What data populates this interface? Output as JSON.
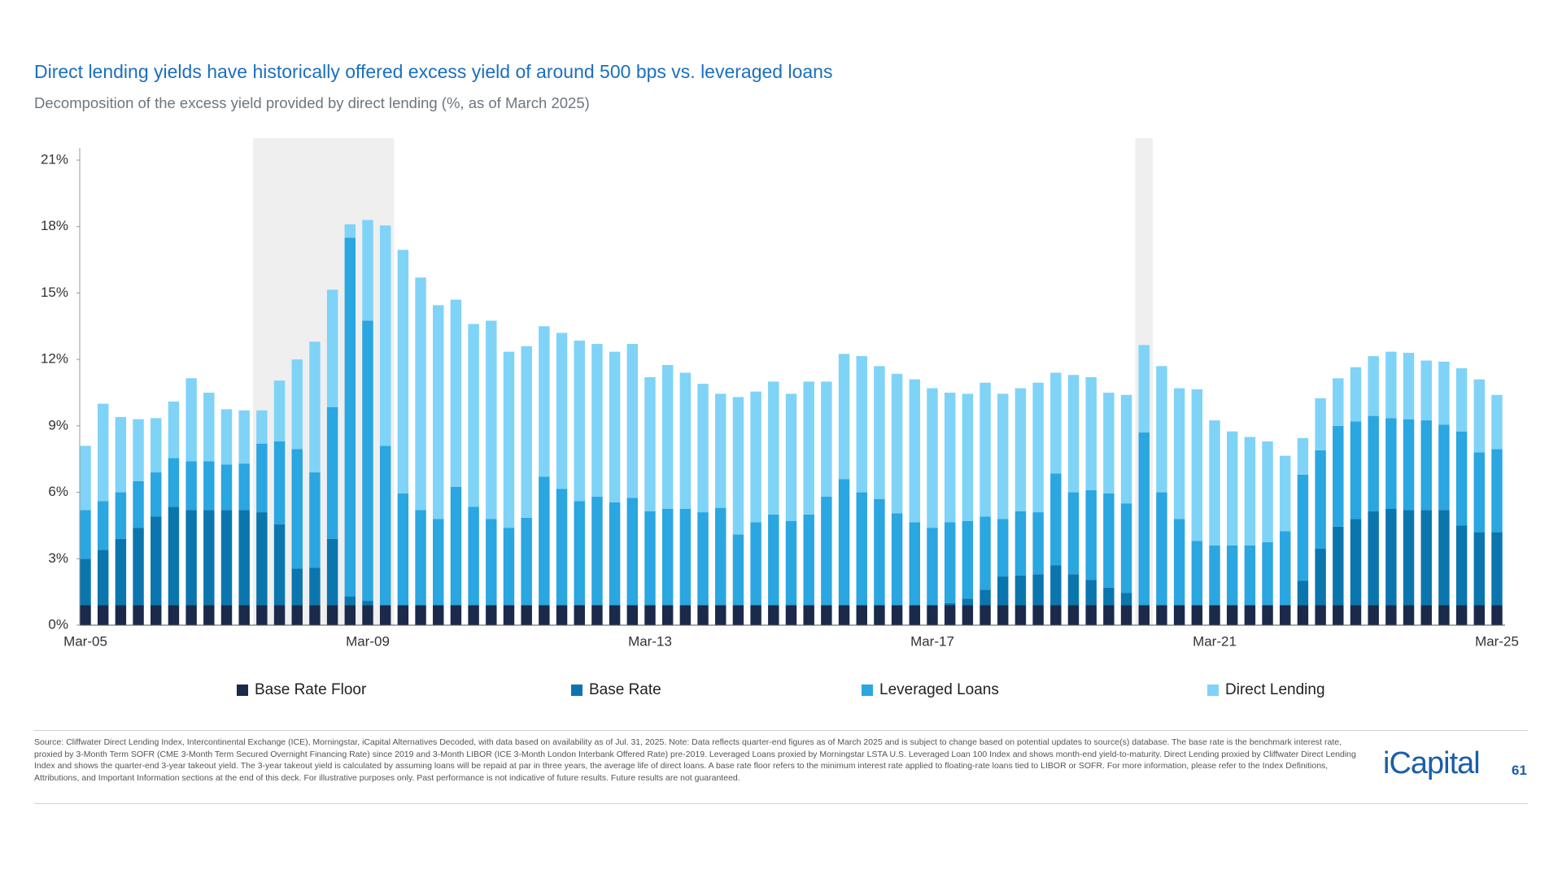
{
  "chart_data": {
    "type": "stacked_bar",
    "title": "Direct lending yields have historically offered excess yield of around 500 bps vs. leveraged loans",
    "subtitle": "Decomposition of the excess yield provided by direct lending (%, as of March 2025)",
    "categories": [
      "Mar-05",
      null,
      null,
      null,
      null,
      null,
      null,
      null,
      null,
      null,
      null,
      null,
      null,
      null,
      null,
      null,
      "Mar-09",
      null,
      null,
      null,
      null,
      null,
      null,
      null,
      null,
      null,
      null,
      null,
      null,
      null,
      null,
      null,
      "Mar-13",
      null,
      null,
      null,
      null,
      null,
      null,
      null,
      null,
      null,
      null,
      null,
      null,
      null,
      null,
      null,
      "Mar-17",
      null,
      null,
      null,
      null,
      null,
      null,
      null,
      null,
      null,
      null,
      null,
      null,
      null,
      null,
      null,
      "Mar-21",
      null,
      null,
      null,
      null,
      null,
      null,
      null,
      null,
      null,
      null,
      null,
      null,
      null,
      null,
      null,
      "Mar-25"
    ],
    "ylim": [
      0,
      21
    ],
    "yticks": [
      {
        "value": 0,
        "label": "0%"
      },
      {
        "value": 3,
        "label": "3%"
      },
      {
        "value": 6,
        "label": "6%"
      },
      {
        "value": 9,
        "label": "9%"
      },
      {
        "value": 12,
        "label": "12%"
      },
      {
        "value": 15,
        "label": "15%"
      },
      {
        "value": 18,
        "label": "18%"
      },
      {
        "value": 21,
        "label": "21%"
      }
    ],
    "series": [
      {
        "name": "Base Rate Floor",
        "color": "#1b2a4a",
        "values": [
          0.9,
          0.9,
          0.9,
          0.9,
          0.9,
          0.9,
          0.9,
          0.9,
          0.9,
          0.9,
          0.9,
          0.9,
          0.9,
          0.9,
          0.9,
          0.9,
          0.9,
          0.9,
          0.9,
          0.9,
          0.9,
          0.9,
          0.9,
          0.9,
          0.9,
          0.9,
          0.9,
          0.9,
          0.9,
          0.9,
          0.9,
          0.9,
          0.9,
          0.9,
          0.9,
          0.9,
          0.9,
          0.9,
          0.9,
          0.9,
          0.9,
          0.9,
          0.9,
          0.9,
          0.9,
          0.9,
          0.9,
          0.9,
          0.9,
          0.9,
          0.9,
          0.9,
          0.9,
          0.9,
          0.9,
          0.9,
          0.9,
          0.9,
          0.9,
          0.9,
          0.9,
          0.9,
          0.9,
          0.9,
          0.9,
          0.9,
          0.9,
          0.9,
          0.9,
          0.9,
          0.9,
          0.9,
          0.9,
          0.9,
          0.9,
          0.9,
          0.9,
          0.9,
          0.9,
          0.9,
          0.9
        ]
      },
      {
        "name": "Base Rate",
        "color": "#0b76ad",
        "values": [
          2.1,
          2.5,
          3.0,
          3.5,
          4.0,
          4.45,
          4.3,
          4.3,
          4.3,
          4.3,
          4.2,
          3.65,
          1.65,
          1.7,
          3.0,
          0.4,
          0.2,
          0,
          0,
          0,
          0,
          0,
          0,
          0,
          0,
          0,
          0,
          0,
          0,
          0,
          0,
          0,
          0,
          0,
          0,
          0,
          0,
          0,
          0,
          0,
          0,
          0,
          0,
          0,
          0,
          0,
          0,
          0,
          0,
          0.1,
          0.3,
          0.7,
          1.3,
          1.35,
          1.4,
          1.8,
          1.4,
          1.15,
          0.8,
          0.55,
          0,
          0,
          0,
          0,
          0,
          0,
          0,
          0,
          0,
          1.1,
          2.55,
          3.55,
          3.9,
          4.25,
          4.35,
          4.3,
          4.3,
          4.3,
          3.6,
          3.3,
          3.3
        ]
      },
      {
        "name": "Leveraged Loans",
        "color": "#2aa6e0",
        "values": [
          2.2,
          2.2,
          2.1,
          2.1,
          2.0,
          2.2,
          2.2,
          2.2,
          2.05,
          2.1,
          3.1,
          3.75,
          5.4,
          4.3,
          5.95,
          16.2,
          12.65,
          7.2,
          5.05,
          4.3,
          3.9,
          5.35,
          4.45,
          3.9,
          3.5,
          3.95,
          5.8,
          5.25,
          4.7,
          4.9,
          4.65,
          4.85,
          4.25,
          4.35,
          4.35,
          4.2,
          4.4,
          3.2,
          3.75,
          4.1,
          3.8,
          4.1,
          4.9,
          5.7,
          5.1,
          4.8,
          4.15,
          3.75,
          3.5,
          3.65,
          3.5,
          3.3,
          2.6,
          2.9,
          2.8,
          4.15,
          3.7,
          4.05,
          4.25,
          4.05,
          7.8,
          5.1,
          3.9,
          2.9,
          2.7,
          2.7,
          2.7,
          2.85,
          3.35,
          4.8,
          4.45,
          4.55,
          4.4,
          4.3,
          4.1,
          4.1,
          4.05,
          3.85,
          4.25,
          3.6,
          3.75
        ]
      },
      {
        "name": "Direct Lending",
        "color": "#7fd3f7",
        "values": [
          2.9,
          4.4,
          3.4,
          2.8,
          2.45,
          2.55,
          3.75,
          3.1,
          2.5,
          2.4,
          1.5,
          2.75,
          4.05,
          5.9,
          5.3,
          0.6,
          4.55,
          9.95,
          11.0,
          10.5,
          9.65,
          8.45,
          8.25,
          8.95,
          7.95,
          7.75,
          6.8,
          7.05,
          7.25,
          6.9,
          6.8,
          6.95,
          6.05,
          6.5,
          6.15,
          5.8,
          5.15,
          6.2,
          5.9,
          6.0,
          5.75,
          6.0,
          5.2,
          5.65,
          6.15,
          6.0,
          6.3,
          6.45,
          6.3,
          5.85,
          5.75,
          6.05,
          5.65,
          5.55,
          5.85,
          4.55,
          5.3,
          5.1,
          4.55,
          4.9,
          3.95,
          5.7,
          5.9,
          6.85,
          5.65,
          5.15,
          4.9,
          4.55,
          3.4,
          1.65,
          2.35,
          2.15,
          2.45,
          2.7,
          3.0,
          3.0,
          2.7,
          2.85,
          2.85,
          3.3,
          2.45
        ]
      }
    ]
  },
  "footnote": "Source: Cliffwater Direct Lending Index, Intercontinental Exchange (ICE), Morningstar, iCapital Alternatives Decoded, with data based on availability as of Jul. 31, 2025. Note: Data reflects quarter-end figures as of March 2025 and is subject to change based on potential updates to source(s) database. The base rate is the benchmark interest rate, proxied by 3-Month Term SOFR (CME 3-Month Term Secured Overnight Financing Rate) since 2019 and 3-Month LIBOR (ICE 3-Month London Interbank Offered Rate) pre-2019. Leveraged Loans proxied by Morningstar LSTA U.S. Leveraged Loan 100 Index and shows month-end yield-to-maturity. Direct Lending proxied by Cliffwater Direct Lending Index and shows the quarter-end 3-year takeout yield. The 3-year takeout yield is calculated by assuming loans will be repaid at par in three years, the average life of direct loans. A base rate floor refers to the minimum interest rate applied to floating-rate loans tied to LIBOR or SOFR. For more information, please refer to the Index Definitions, Attributions, and Important Information sections at the end of this deck. For illustrative purposes only. Past performance is not indicative of future results. Future results are not guaranteed.",
  "brand": "iCapital",
  "page_number": "61"
}
